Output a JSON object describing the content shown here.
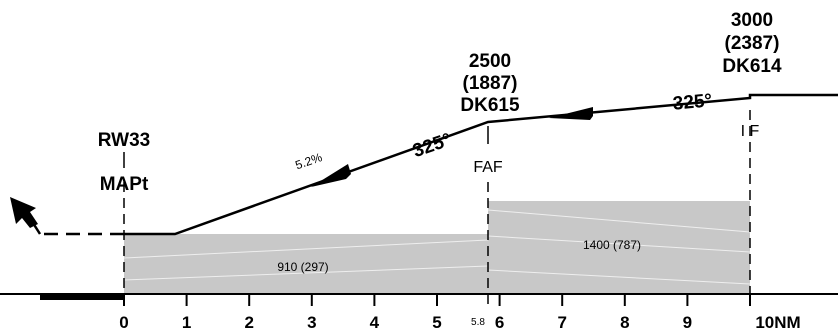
{
  "runway": {
    "name": "RW33",
    "mapt": "MAPt"
  },
  "fixes": [
    {
      "id": "faf",
      "role": "FAF",
      "name": "DK615",
      "altitude": "2500",
      "height": "(1887)",
      "distance_nm": 5.8
    },
    {
      "id": "if",
      "role": "I F",
      "name": "DK614",
      "altitude": "3000",
      "height": "(2387)",
      "distance_nm": 10
    }
  ],
  "tracks": [
    {
      "id": "final",
      "label": "325°"
    },
    {
      "id": "intermediate",
      "label": "325°"
    }
  ],
  "gradient": "5.2%",
  "segments": [
    {
      "id": "final-segment",
      "label": "910 (297)",
      "from_nm": 0,
      "to_nm": 5.8
    },
    {
      "id": "intermediate-segment",
      "label": "1400 (787)",
      "from_nm": 5.8,
      "to_nm": 10
    }
  ],
  "axis": {
    "ticks": [
      "0",
      "1",
      "2",
      "3",
      "4",
      "5",
      "6",
      "7",
      "8",
      "9"
    ],
    "end_label": "10NM",
    "faf_mark": "5.8"
  },
  "colors": {
    "line": "#000000",
    "obstacle_fill": "#c8c8c8"
  },
  "icons": {
    "missed_approach": "missed-approach-arrow-icon",
    "direction": "direction-arrow-icon"
  }
}
